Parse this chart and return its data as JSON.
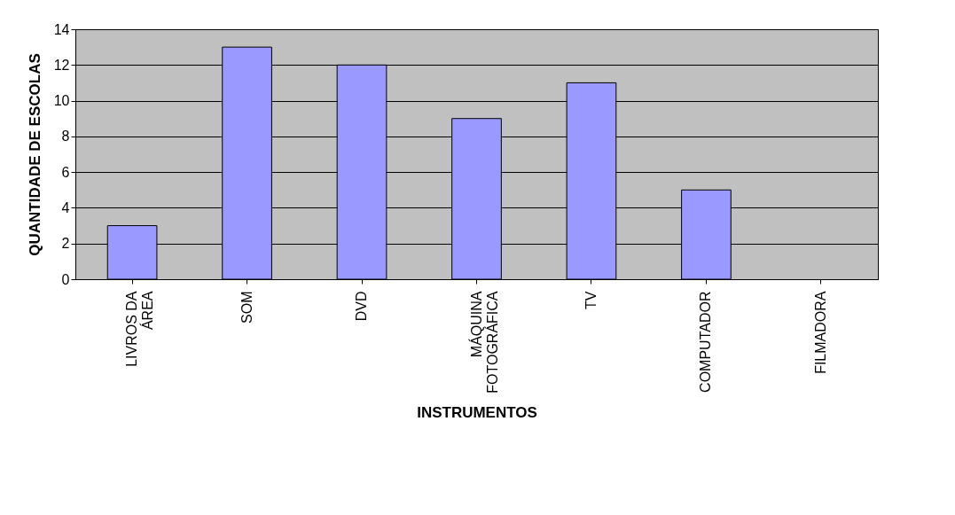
{
  "chart_data": {
    "type": "bar",
    "xlabel": "INSTRUMENTOS",
    "ylabel": "QUANTIDADE DE ESCOLAS",
    "categories": [
      "LIVROS DA\nÁREA",
      "SOM",
      "DVD",
      "MÁQUINA\nFOTOGRÁFICA",
      "TV",
      "COMPUTADOR",
      "FILMADORA"
    ],
    "values": [
      3,
      13,
      12,
      9,
      11,
      5,
      0
    ],
    "color": "#9999ff",
    "ylim": [
      0,
      14
    ],
    "yticks": [
      0,
      2,
      4,
      6,
      8,
      10,
      12,
      14
    ],
    "grid": "y"
  }
}
